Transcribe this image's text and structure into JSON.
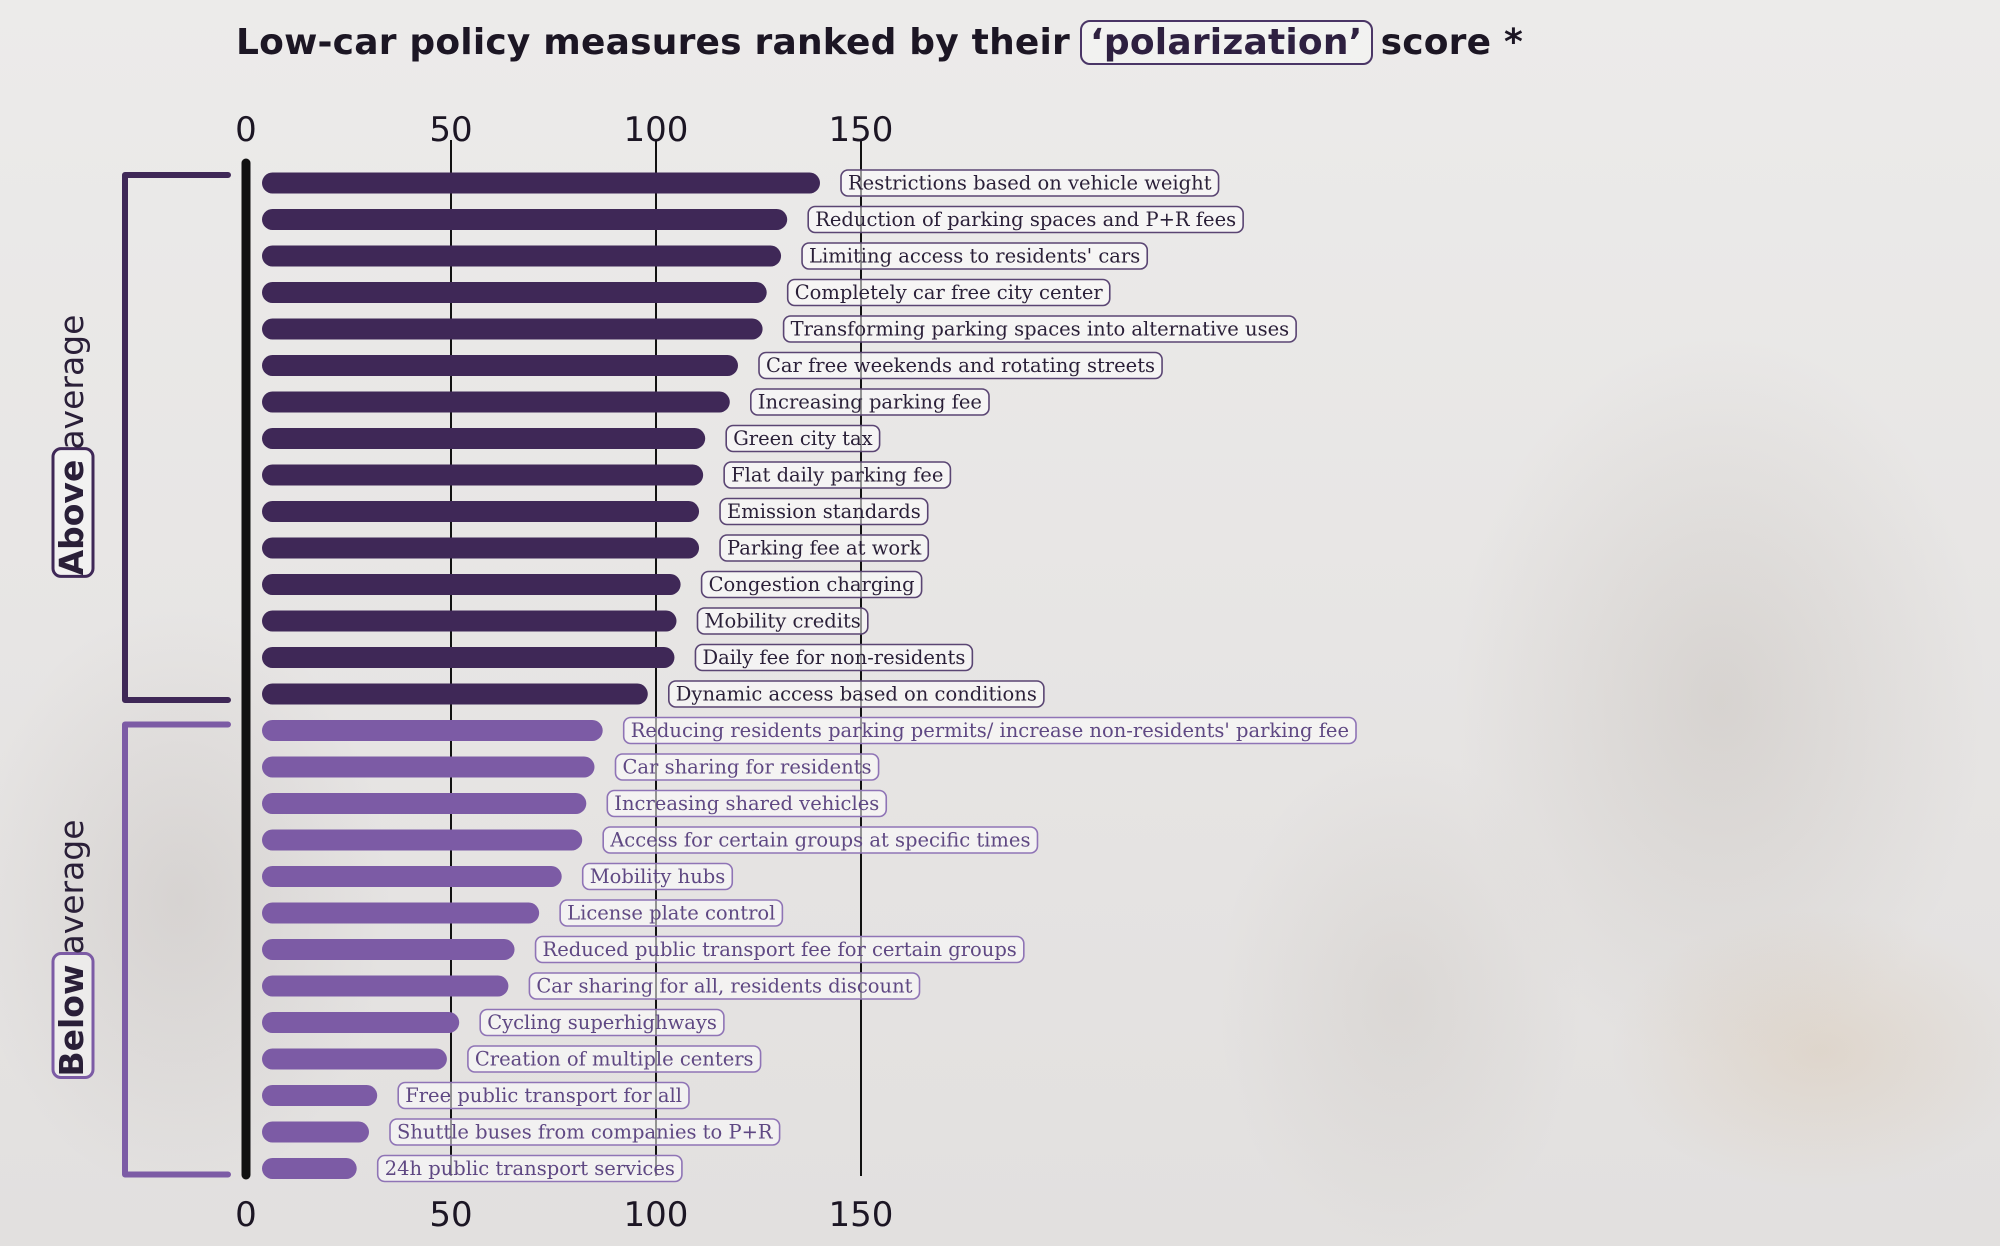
{
  "title": {
    "before": "Low-car policy measures ranked by their",
    "highlight": "‘polarization’",
    "after": "score *"
  },
  "groups": {
    "above": {
      "bold": "Above",
      "rest": "average"
    },
    "below": {
      "bold": "Below",
      "rest": "average"
    }
  },
  "colors": {
    "above_bar": "#3f2857",
    "below_bar": "#7c5ba5",
    "above_label_border": "#5a4573",
    "below_label_border": "#8f74b6",
    "axis_line": "#111111",
    "grid_line": "#111111"
  },
  "chart_data": {
    "type": "bar",
    "orientation": "horizontal",
    "title": "Low-car policy measures ranked by their ‘polarization’ score *",
    "xlim": [
      0,
      150
    ],
    "xticks": [
      0,
      50,
      100,
      150
    ],
    "grid": true,
    "categories": [
      "Restrictions based on vehicle weight",
      "Reduction of parking spaces and P+R fees",
      "Limiting access to residents' cars",
      "Completely car free city center",
      "Transforming parking spaces into alternative uses",
      "Car free weekends and rotating streets",
      "Increasing parking fee",
      "Green city tax",
      "Flat daily parking fee",
      "Emission standards",
      "Parking fee at work",
      "Congestion charging",
      "Mobility credits",
      "Daily fee for non-residents",
      "Dynamic access based on conditions",
      "Reducing residents parking permits/ increase non-residents' parking fee",
      "Car sharing for residents",
      "Increasing shared vehicles",
      "Access for certain groups at specific times",
      "Mobility hubs",
      "License plate control",
      "Reduced public transport fee for certain groups",
      "Car sharing for all, residents discount",
      "Cycling superhighways",
      "Creation of multiple centers",
      "Free public transport for all",
      "Shuttle buses from companies to P+R",
      "24h public transport services"
    ],
    "values": [
      140,
      132,
      130.5,
      127,
      126,
      120,
      118,
      112,
      111.5,
      110.5,
      110.5,
      106,
      105,
      104.5,
      98,
      87,
      85,
      83,
      82,
      77,
      71.5,
      65.5,
      64,
      52,
      49,
      32,
      30,
      27
    ],
    "groups": [
      "above",
      "above",
      "above",
      "above",
      "above",
      "above",
      "above",
      "above",
      "above",
      "above",
      "above",
      "above",
      "above",
      "above",
      "above",
      "below",
      "below",
      "below",
      "below",
      "below",
      "below",
      "below",
      "below",
      "below",
      "below",
      "below",
      "below",
      "below"
    ]
  }
}
